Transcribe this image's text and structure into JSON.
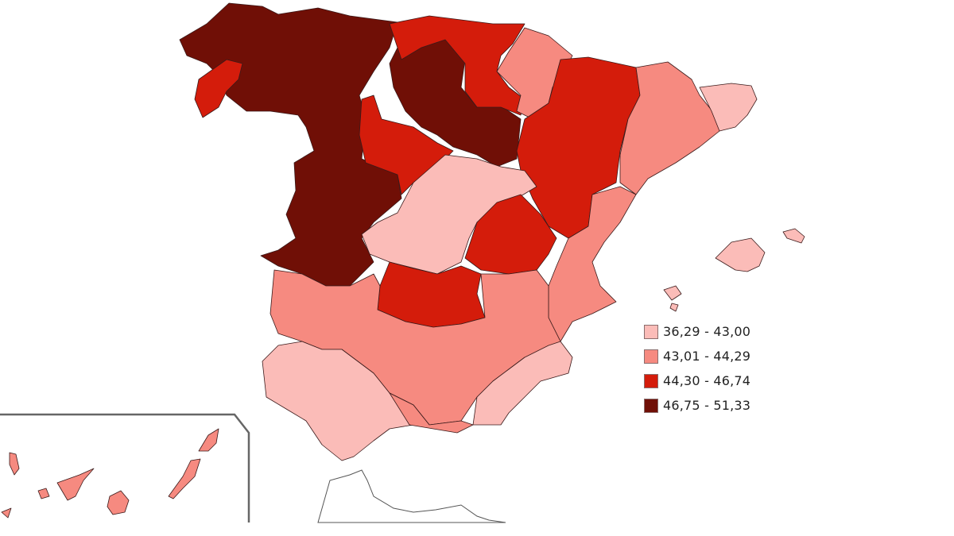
{
  "colors": {
    "class_1": "#fbbcb8",
    "class_2": "#f68a80",
    "class_3": "#d41c0b",
    "class_4": "#700f06",
    "outline": "#555555",
    "background": "#ffffff"
  },
  "legend": {
    "items": [
      {
        "label": "36,29 - 43,00",
        "color": "#fbbcb8"
      },
      {
        "label": "43,01 - 44,29",
        "color": "#f68a80"
      },
      {
        "label": "44,30 - 46,74",
        "color": "#d41c0b"
      },
      {
        "label": "46,75 - 51,33",
        "color": "#700f06"
      }
    ]
  }
}
